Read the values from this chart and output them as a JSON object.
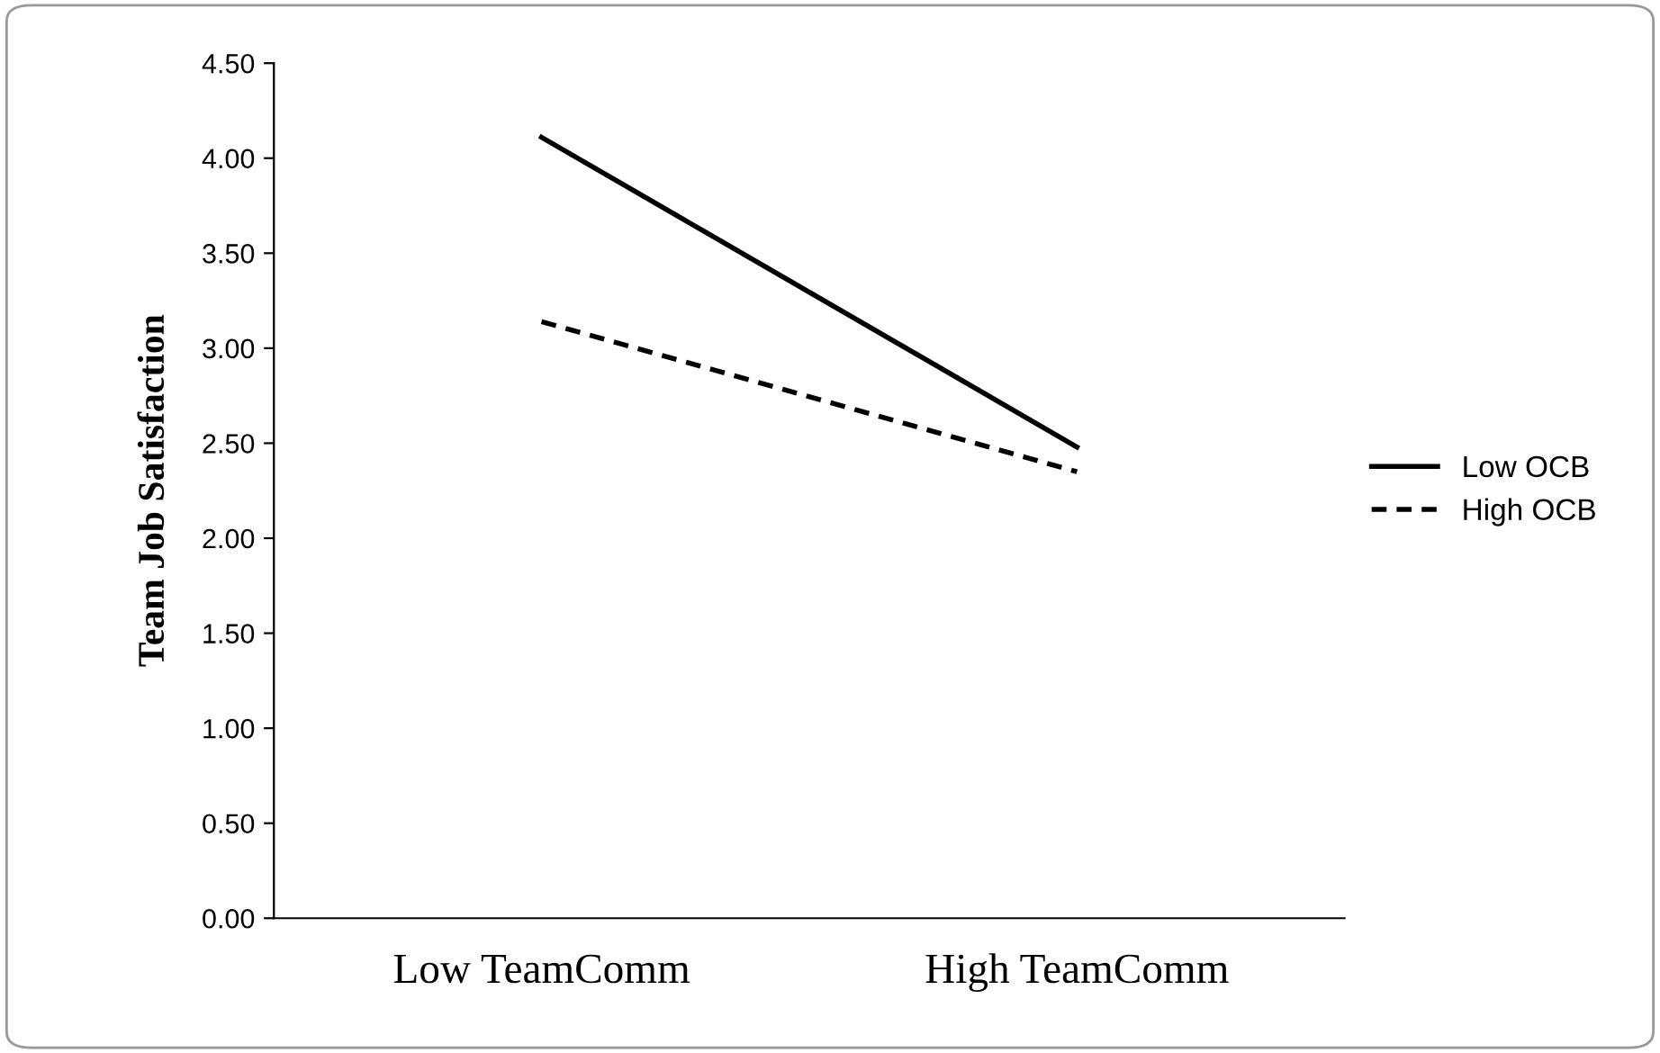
{
  "chart_data": {
    "type": "line",
    "ylabel": "Team Job Satisfaction",
    "categories": [
      "Low TeamComm",
      "High TeamComm"
    ],
    "series": [
      {
        "name": "Low OCB",
        "color": "#000000",
        "values": [
          4.11,
          2.48
        ],
        "line_style": "solid"
      },
      {
        "name": "High OCB",
        "color": "#000000",
        "values": [
          3.14,
          2.35
        ],
        "line_style": "dashed"
      }
    ],
    "ylim": [
      0,
      4.5
    ],
    "yticks": [
      {
        "value": 0,
        "label": "0.00"
      },
      {
        "value": 0.5,
        "label": "0.50"
      },
      {
        "value": 1,
        "label": "1.00"
      },
      {
        "value": 1.5,
        "label": "1.50"
      },
      {
        "value": 2,
        "label": "2.00"
      },
      {
        "value": 2.5,
        "label": "2.50"
      },
      {
        "value": 3,
        "label": "3.00"
      },
      {
        "value": 3.5,
        "label": "3.50"
      },
      {
        "value": 4,
        "label": "4.00"
      },
      {
        "value": 4.5,
        "label": "4.50"
      }
    ],
    "grid": false,
    "legend": "right",
    "marker": "none"
  }
}
